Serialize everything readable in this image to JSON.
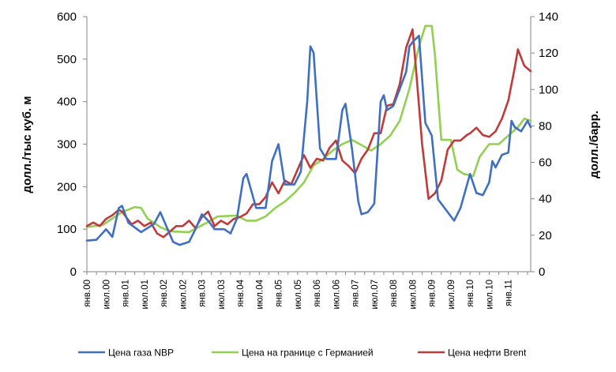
{
  "chart_data": {
    "type": "line",
    "title": "",
    "ylabel_left": "долл./тыс куб. м",
    "ylabel_right": "долл./барр.",
    "ylim_left": [
      0,
      600
    ],
    "ylim_right": [
      0,
      140
    ],
    "yticks_left": [
      "0",
      "100",
      "200",
      "300",
      "400",
      "500",
      "600"
    ],
    "yticks_right": [
      "0",
      "20",
      "40",
      "60",
      "80",
      "100",
      "120",
      "140"
    ],
    "x_tick_labels": [
      "янв.00",
      "июл.00",
      "янв.01",
      "июл.01",
      "янв.02",
      "июл.02",
      "янв.03",
      "июл.03",
      "янв.04",
      "июл.04",
      "янв.05",
      "июл.05",
      "янв.06",
      "июл.06",
      "янв.07",
      "июл.07",
      "янв.08",
      "июл.08",
      "янв.09",
      "июл.09",
      "янв.10",
      "июл.10",
      "янв.11"
    ],
    "x_start": "2000-01",
    "x_end": "2011-08",
    "grid": false,
    "legend_position": "bottom",
    "series": [
      {
        "name": "Цена газа NBP",
        "color": "#3f6fc0",
        "axis": "left",
        "points": [
          [
            "2000-01",
            73
          ],
          [
            "2000-04",
            75
          ],
          [
            "2000-07",
            100
          ],
          [
            "2000-09",
            82
          ],
          [
            "2000-11",
            150
          ],
          [
            "2000-12",
            155
          ],
          [
            "2001-02",
            115
          ],
          [
            "2001-06",
            93
          ],
          [
            "2001-10",
            112
          ],
          [
            "2001-12",
            140
          ],
          [
            "2002-04",
            70
          ],
          [
            "2002-06",
            63
          ],
          [
            "2002-09",
            70
          ],
          [
            "2002-11",
            100
          ],
          [
            "2003-01",
            135
          ],
          [
            "2003-03",
            120
          ],
          [
            "2003-05",
            100
          ],
          [
            "2003-08",
            100
          ],
          [
            "2003-10",
            90
          ],
          [
            "2003-12",
            125
          ],
          [
            "2004-02",
            220
          ],
          [
            "2004-03",
            230
          ],
          [
            "2004-06",
            150
          ],
          [
            "2004-09",
            150
          ],
          [
            "2004-11",
            260
          ],
          [
            "2005-01",
            300
          ],
          [
            "2005-03",
            205
          ],
          [
            "2005-06",
            205
          ],
          [
            "2005-08",
            235
          ],
          [
            "2005-10",
            400
          ],
          [
            "2005-11",
            530
          ],
          [
            "2005-12",
            515
          ],
          [
            "2006-02",
            290
          ],
          [
            "2006-04",
            265
          ],
          [
            "2006-07",
            265
          ],
          [
            "2006-09",
            380
          ],
          [
            "2006-10",
            395
          ],
          [
            "2006-12",
            290
          ],
          [
            "2007-02",
            165
          ],
          [
            "2007-03",
            135
          ],
          [
            "2007-05",
            140
          ],
          [
            "2007-07",
            160
          ],
          [
            "2007-09",
            400
          ],
          [
            "2007-10",
            415
          ],
          [
            "2007-11",
            380
          ],
          [
            "2008-01",
            390
          ],
          [
            "2008-03",
            430
          ],
          [
            "2008-05",
            470
          ],
          [
            "2008-06",
            530
          ],
          [
            "2008-07",
            540
          ],
          [
            "2008-09",
            555
          ],
          [
            "2008-11",
            350
          ],
          [
            "2009-01",
            320
          ],
          [
            "2009-03",
            170
          ],
          [
            "2009-06",
            140
          ],
          [
            "2009-08",
            120
          ],
          [
            "2009-10",
            150
          ],
          [
            "2010-01",
            230
          ],
          [
            "2010-03",
            185
          ],
          [
            "2010-05",
            180
          ],
          [
            "2010-07",
            210
          ],
          [
            "2010-08",
            260
          ],
          [
            "2010-09",
            245
          ],
          [
            "2010-11",
            275
          ],
          [
            "2011-01",
            280
          ],
          [
            "2011-02",
            355
          ],
          [
            "2011-03",
            340
          ],
          [
            "2011-05",
            330
          ],
          [
            "2011-07",
            355
          ],
          [
            "2011-08",
            340
          ]
        ]
      },
      {
        "name": "Цена на границе с Германией",
        "color": "#92d050",
        "axis": "left",
        "points": [
          [
            "2000-01",
            105
          ],
          [
            "2000-06",
            110
          ],
          [
            "2000-09",
            125
          ],
          [
            "2000-12",
            140
          ],
          [
            "2001-04",
            152
          ],
          [
            "2001-06",
            150
          ],
          [
            "2001-08",
            125
          ],
          [
            "2001-12",
            105
          ],
          [
            "2002-03",
            95
          ],
          [
            "2002-09",
            93
          ],
          [
            "2002-12",
            105
          ],
          [
            "2003-03",
            117
          ],
          [
            "2003-06",
            130
          ],
          [
            "2003-12",
            132
          ],
          [
            "2004-03",
            120
          ],
          [
            "2004-06",
            120
          ],
          [
            "2004-09",
            130
          ],
          [
            "2004-12",
            150
          ],
          [
            "2005-03",
            165
          ],
          [
            "2005-06",
            185
          ],
          [
            "2005-09",
            210
          ],
          [
            "2005-12",
            250
          ],
          [
            "2006-03",
            265
          ],
          [
            "2006-06",
            285
          ],
          [
            "2006-09",
            300
          ],
          [
            "2006-12",
            310
          ],
          [
            "2007-03",
            298
          ],
          [
            "2007-06",
            285
          ],
          [
            "2007-09",
            300
          ],
          [
            "2007-12",
            320
          ],
          [
            "2008-03",
            355
          ],
          [
            "2008-06",
            430
          ],
          [
            "2008-09",
            530
          ],
          [
            "2008-11",
            578
          ],
          [
            "2009-01",
            578
          ],
          [
            "2009-02",
            510
          ],
          [
            "2009-04",
            310
          ],
          [
            "2009-07",
            310
          ],
          [
            "2009-09",
            240
          ],
          [
            "2009-11",
            230
          ],
          [
            "2010-02",
            225
          ],
          [
            "2010-04",
            270
          ],
          [
            "2010-07",
            300
          ],
          [
            "2010-10",
            300
          ],
          [
            "2011-01",
            320
          ],
          [
            "2011-04",
            340
          ],
          [
            "2011-06",
            360
          ],
          [
            "2011-08",
            355
          ]
        ]
      },
      {
        "name": "Цена нефти Brent",
        "color": "#c03a3a",
        "axis": "right",
        "points": [
          [
            "2000-01",
            25
          ],
          [
            "2000-03",
            27
          ],
          [
            "2000-05",
            25
          ],
          [
            "2000-07",
            29
          ],
          [
            "2000-09",
            31
          ],
          [
            "2000-11",
            34
          ],
          [
            "2000-12",
            33
          ],
          [
            "2001-03",
            26
          ],
          [
            "2001-05",
            28
          ],
          [
            "2001-07",
            25
          ],
          [
            "2001-09",
            27
          ],
          [
            "2001-11",
            21
          ],
          [
            "2002-01",
            19
          ],
          [
            "2002-03",
            22
          ],
          [
            "2002-05",
            25
          ],
          [
            "2002-07",
            25
          ],
          [
            "2002-09",
            28
          ],
          [
            "2002-11",
            24
          ],
          [
            "2003-01",
            30
          ],
          [
            "2003-03",
            33
          ],
          [
            "2003-05",
            25
          ],
          [
            "2003-07",
            28
          ],
          [
            "2003-09",
            26
          ],
          [
            "2003-11",
            29
          ],
          [
            "2004-01",
            30
          ],
          [
            "2004-03",
            32
          ],
          [
            "2004-05",
            37
          ],
          [
            "2004-07",
            37
          ],
          [
            "2004-09",
            41
          ],
          [
            "2004-11",
            49
          ],
          [
            "2005-01",
            43
          ],
          [
            "2005-03",
            50
          ],
          [
            "2005-05",
            48
          ],
          [
            "2005-07",
            56
          ],
          [
            "2005-09",
            64
          ],
          [
            "2005-11",
            57
          ],
          [
            "2006-01",
            62
          ],
          [
            "2006-03",
            61
          ],
          [
            "2006-05",
            68
          ],
          [
            "2006-07",
            72
          ],
          [
            "2006-09",
            61
          ],
          [
            "2006-11",
            58
          ],
          [
            "2007-01",
            54
          ],
          [
            "2007-03",
            62
          ],
          [
            "2007-05",
            67
          ],
          [
            "2007-07",
            76
          ],
          [
            "2007-09",
            76
          ],
          [
            "2007-11",
            91
          ],
          [
            "2008-01",
            92
          ],
          [
            "2008-03",
            103
          ],
          [
            "2008-05",
            123
          ],
          [
            "2008-07",
            133
          ],
          [
            "2008-08",
            113
          ],
          [
            "2008-10",
            70
          ],
          [
            "2008-12",
            40
          ],
          [
            "2009-02",
            43
          ],
          [
            "2009-04",
            50
          ],
          [
            "2009-06",
            67
          ],
          [
            "2009-08",
            72
          ],
          [
            "2009-10",
            72
          ],
          [
            "2009-12",
            75
          ],
          [
            "2010-01",
            76
          ],
          [
            "2010-03",
            79
          ],
          [
            "2010-05",
            75
          ],
          [
            "2010-07",
            74
          ],
          [
            "2010-09",
            77
          ],
          [
            "2010-11",
            84
          ],
          [
            "2011-01",
            94
          ],
          [
            "2011-03",
            112
          ],
          [
            "2011-04",
            122
          ],
          [
            "2011-06",
            113
          ],
          [
            "2011-08",
            110
          ]
        ]
      }
    ]
  }
}
